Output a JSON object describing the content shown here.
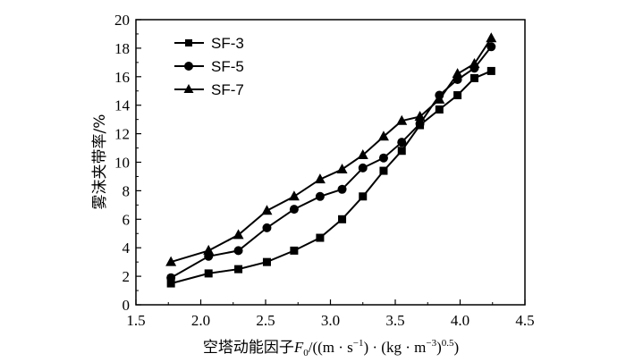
{
  "chart_data": {
    "type": "line",
    "xlabel": {
      "main": "空塔动能因子",
      "var": "F",
      "var_sub": "0",
      "unit_a": "/((m · s",
      "unit_a_sup": "−1",
      "unit_b": ") · (kg · m",
      "unit_b_sup": "−3",
      "unit_c": ")",
      "unit_c_sup": "0.5",
      "unit_d": ")"
    },
    "ylabel": "雾沫夹带率/%",
    "xlim": [
      1.5,
      4.5
    ],
    "ylim": [
      0,
      20
    ],
    "xticks": [
      1.5,
      2.0,
      2.5,
      3.0,
      3.5,
      4.0,
      4.5
    ],
    "xtick_labels": [
      "1.5",
      "2.0",
      "2.5",
      "3.0",
      "3.5",
      "4.0",
      "4.5"
    ],
    "yticks": [
      0,
      2,
      4,
      6,
      8,
      10,
      12,
      14,
      16,
      18,
      20
    ],
    "ytick_labels": [
      "0",
      "2",
      "4",
      "6",
      "8",
      "10",
      "12",
      "14",
      "16",
      "18",
      "20"
    ],
    "grid": false,
    "legend_position": "top-left",
    "series": [
      {
        "name": "SF-3",
        "marker": "square",
        "x": [
          1.77,
          2.06,
          2.29,
          2.51,
          2.72,
          2.92,
          3.09,
          3.25,
          3.41,
          3.55,
          3.69,
          3.84,
          3.98,
          4.11,
          4.24
        ],
        "y": [
          1.5,
          2.2,
          2.5,
          3.0,
          3.8,
          4.7,
          6.0,
          7.6,
          9.4,
          10.8,
          12.6,
          13.7,
          14.7,
          15.9,
          16.4
        ]
      },
      {
        "name": "SF-5",
        "marker": "circle",
        "x": [
          1.77,
          2.06,
          2.29,
          2.51,
          2.72,
          2.92,
          3.09,
          3.25,
          3.41,
          3.55,
          3.69,
          3.84,
          3.98,
          4.11,
          4.24
        ],
        "y": [
          1.9,
          3.4,
          3.8,
          5.4,
          6.7,
          7.6,
          8.1,
          9.6,
          10.3,
          11.4,
          12.7,
          14.7,
          15.8,
          16.6,
          18.1
        ]
      },
      {
        "name": "SF-7",
        "marker": "triangle",
        "x": [
          1.77,
          2.06,
          2.29,
          2.51,
          2.72,
          2.92,
          3.09,
          3.25,
          3.41,
          3.55,
          3.69,
          3.84,
          3.98,
          4.11,
          4.24
        ],
        "y": [
          3.0,
          3.8,
          4.9,
          6.6,
          7.6,
          8.8,
          9.5,
          10.5,
          11.8,
          12.9,
          13.2,
          14.4,
          16.2,
          16.9,
          18.7
        ]
      }
    ]
  }
}
